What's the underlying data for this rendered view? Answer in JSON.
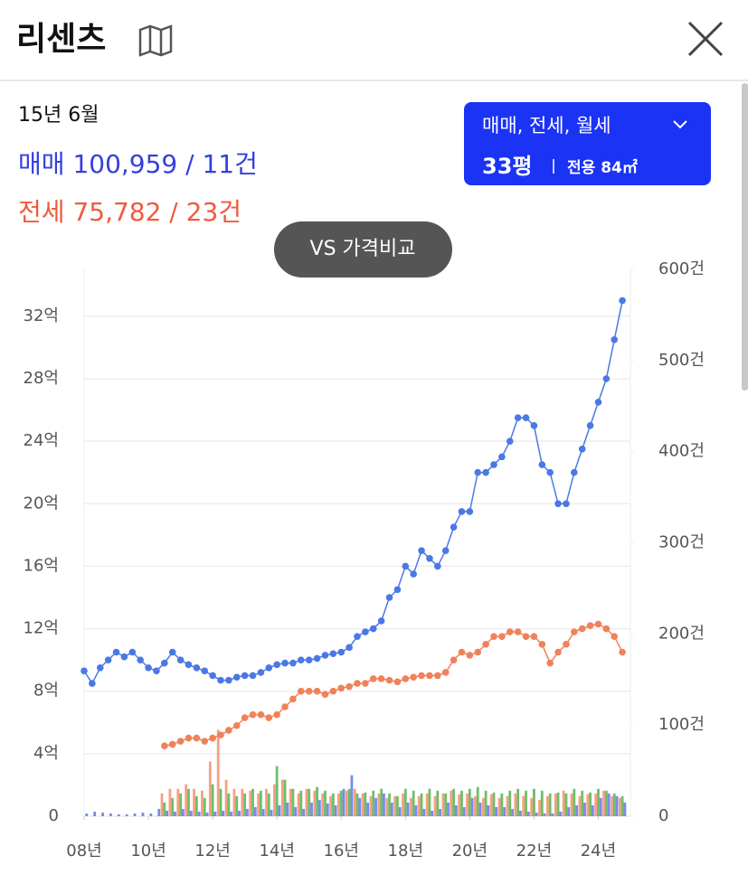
{
  "header": {
    "title": "리센츠"
  },
  "info": {
    "date": "15년 6월",
    "sale": {
      "label": "매매",
      "value": "100,959 / 11건"
    },
    "jeonse": {
      "label": "전세",
      "value": "75,782 / 23건"
    }
  },
  "filter": {
    "types": "매매, 전세, 월세",
    "size": "33평",
    "area": "전용 84㎡"
  },
  "compare_button": "VS 가격비교",
  "chart_data": {
    "type": "line",
    "grid": true,
    "xlim": [
      2008,
      2025
    ],
    "xticks": [
      {
        "value": 2008,
        "label": "08년"
      },
      {
        "value": 2010,
        "label": "10년"
      },
      {
        "value": 2012,
        "label": "12년"
      },
      {
        "value": 2014,
        "label": "14년"
      },
      {
        "value": 2016,
        "label": "16년"
      },
      {
        "value": 2018,
        "label": "18년"
      },
      {
        "value": 2020,
        "label": "20년"
      },
      {
        "value": 2022,
        "label": "22년"
      },
      {
        "value": 2024,
        "label": "24년"
      }
    ],
    "ylim": [
      0,
      35
    ],
    "yticks": [
      0,
      {
        "value": 4,
        "label": "4억"
      },
      {
        "value": 8,
        "label": "8억"
      },
      {
        "value": 12,
        "label": "12억"
      },
      {
        "value": 16,
        "label": "16억"
      },
      {
        "value": 20,
        "label": "20억"
      },
      {
        "value": 24,
        "label": "24억"
      },
      {
        "value": 28,
        "label": "28억"
      },
      {
        "value": 32,
        "label": "32억"
      }
    ],
    "y2lim": [
      0,
      600
    ],
    "y2ticks": [
      0,
      {
        "value": 100,
        "label": "100건"
      },
      {
        "value": 200,
        "label": "200건"
      },
      {
        "value": 300,
        "label": "300건"
      },
      {
        "value": 400,
        "label": "400건"
      },
      {
        "value": 500,
        "label": "500건"
      },
      {
        "value": 600,
        "label": "600건"
      }
    ],
    "x": [
      2008,
      2008.25,
      2008.5,
      2008.75,
      2009,
      2009.25,
      2009.5,
      2009.75,
      2010,
      2010.25,
      2010.5,
      2010.75,
      2011,
      2011.25,
      2011.5,
      2011.75,
      2012,
      2012.25,
      2012.5,
      2012.75,
      2013,
      2013.25,
      2013.5,
      2013.75,
      2014,
      2014.25,
      2014.5,
      2014.75,
      2015,
      2015.25,
      2015.5,
      2015.75,
      2016,
      2016.25,
      2016.5,
      2016.75,
      2017,
      2017.25,
      2017.5,
      2017.75,
      2018,
      2018.25,
      2018.5,
      2018.75,
      2019,
      2019.25,
      2019.5,
      2019.75,
      2020,
      2020.25,
      2020.5,
      2020.75,
      2021,
      2021.25,
      2021.5,
      2021.75,
      2022,
      2022.25,
      2022.5,
      2022.75,
      2023,
      2023.25,
      2023.5,
      2023.75,
      2024,
      2024.25,
      2024.5,
      2024.75
    ],
    "series": [
      {
        "type": "bar",
        "axis": "y2",
        "color": "#f0825a",
        "values": [
          0,
          0,
          0,
          0,
          0,
          0,
          0,
          0,
          0,
          0,
          25,
          30,
          30,
          35,
          30,
          28,
          60,
          95,
          40,
          30,
          30,
          28,
          25,
          30,
          35,
          40,
          30,
          25,
          30,
          28,
          25,
          22,
          25,
          28,
          30,
          25,
          22,
          25,
          20,
          22,
          25,
          20,
          22,
          25,
          22,
          25,
          28,
          24,
          25,
          22,
          20,
          24,
          20,
          22,
          25,
          22,
          20,
          18,
          22,
          25,
          28,
          25,
          22,
          24,
          25,
          28,
          22,
          20
        ]
      },
      {
        "type": "bar",
        "axis": "y2",
        "color": "#3ea83a",
        "values": [
          0,
          0,
          0,
          0,
          0,
          0,
          0,
          0,
          0,
          0,
          15,
          20,
          25,
          30,
          22,
          20,
          35,
          30,
          25,
          22,
          25,
          30,
          28,
          25,
          55,
          40,
          30,
          28,
          30,
          32,
          28,
          25,
          28,
          30,
          25,
          26,
          28,
          30,
          25,
          22,
          30,
          28,
          25,
          30,
          28,
          25,
          30,
          28,
          30,
          32,
          28,
          26,
          25,
          28,
          30,
          28,
          30,
          28,
          25,
          26,
          25,
          30,
          28,
          26,
          30,
          28,
          25,
          22
        ]
      },
      {
        "type": "bar",
        "axis": "y2",
        "color": "#4a66e8",
        "values": [
          3,
          5,
          4,
          3,
          2,
          2,
          3,
          4,
          3,
          8,
          6,
          5,
          8,
          6,
          5,
          4,
          5,
          6,
          5,
          6,
          8,
          10,
          8,
          7,
          12,
          15,
          10,
          8,
          15,
          18,
          14,
          12,
          30,
          45,
          20,
          15,
          20,
          25,
          15,
          10,
          15,
          12,
          8,
          6,
          8,
          15,
          12,
          10,
          20,
          15,
          12,
          10,
          10,
          8,
          6,
          5,
          4,
          3,
          3,
          5,
          10,
          12,
          15,
          12,
          20,
          25,
          22,
          15
        ]
      },
      {
        "color": "#f0825a",
        "values": [
          null,
          null,
          null,
          null,
          null,
          null,
          null,
          null,
          null,
          null,
          4.5,
          4.6,
          4.8,
          5.0,
          5.0,
          4.8,
          5.0,
          5.2,
          5.5,
          5.8,
          6.3,
          6.5,
          6.5,
          6.3,
          6.5,
          7.0,
          7.5,
          8.0,
          8.0,
          8.0,
          7.8,
          8.0,
          8.2,
          8.3,
          8.5,
          8.5,
          8.8,
          8.8,
          8.7,
          8.6,
          8.8,
          8.9,
          9.0,
          9.0,
          9.0,
          9.2,
          10.0,
          10.5,
          10.3,
          10.5,
          11.0,
          11.5,
          11.5,
          11.8,
          11.8,
          11.5,
          11.5,
          11.0,
          9.8,
          10.5,
          11.0,
          11.8,
          12.0,
          12.2,
          12.3,
          12.0,
          11.5,
          10.5
        ]
      },
      {
        "color": "#4a78e6",
        "values": [
          9.3,
          8.5,
          9.5,
          10.0,
          10.5,
          10.2,
          10.5,
          10.0,
          9.5,
          9.3,
          9.8,
          10.5,
          10.0,
          9.7,
          9.5,
          9.3,
          9.0,
          8.7,
          8.7,
          8.9,
          9.0,
          9.0,
          9.2,
          9.5,
          9.7,
          9.8,
          9.8,
          10.0,
          10.0,
          10.1,
          10.3,
          10.4,
          10.5,
          10.8,
          11.5,
          11.8,
          12.0,
          12.5,
          14.0,
          14.5,
          16.0,
          15.5,
          17.0,
          16.5,
          16.0,
          17.0,
          18.5,
          19.5,
          19.5,
          22.0,
          22.0,
          22.5,
          23.0,
          24.0,
          25.5,
          25.5,
          25.0,
          22.5,
          22.0,
          20.0,
          20.0,
          22.0,
          23.5,
          25.0,
          26.5,
          28.0,
          30.5,
          33.0
        ]
      }
    ]
  }
}
